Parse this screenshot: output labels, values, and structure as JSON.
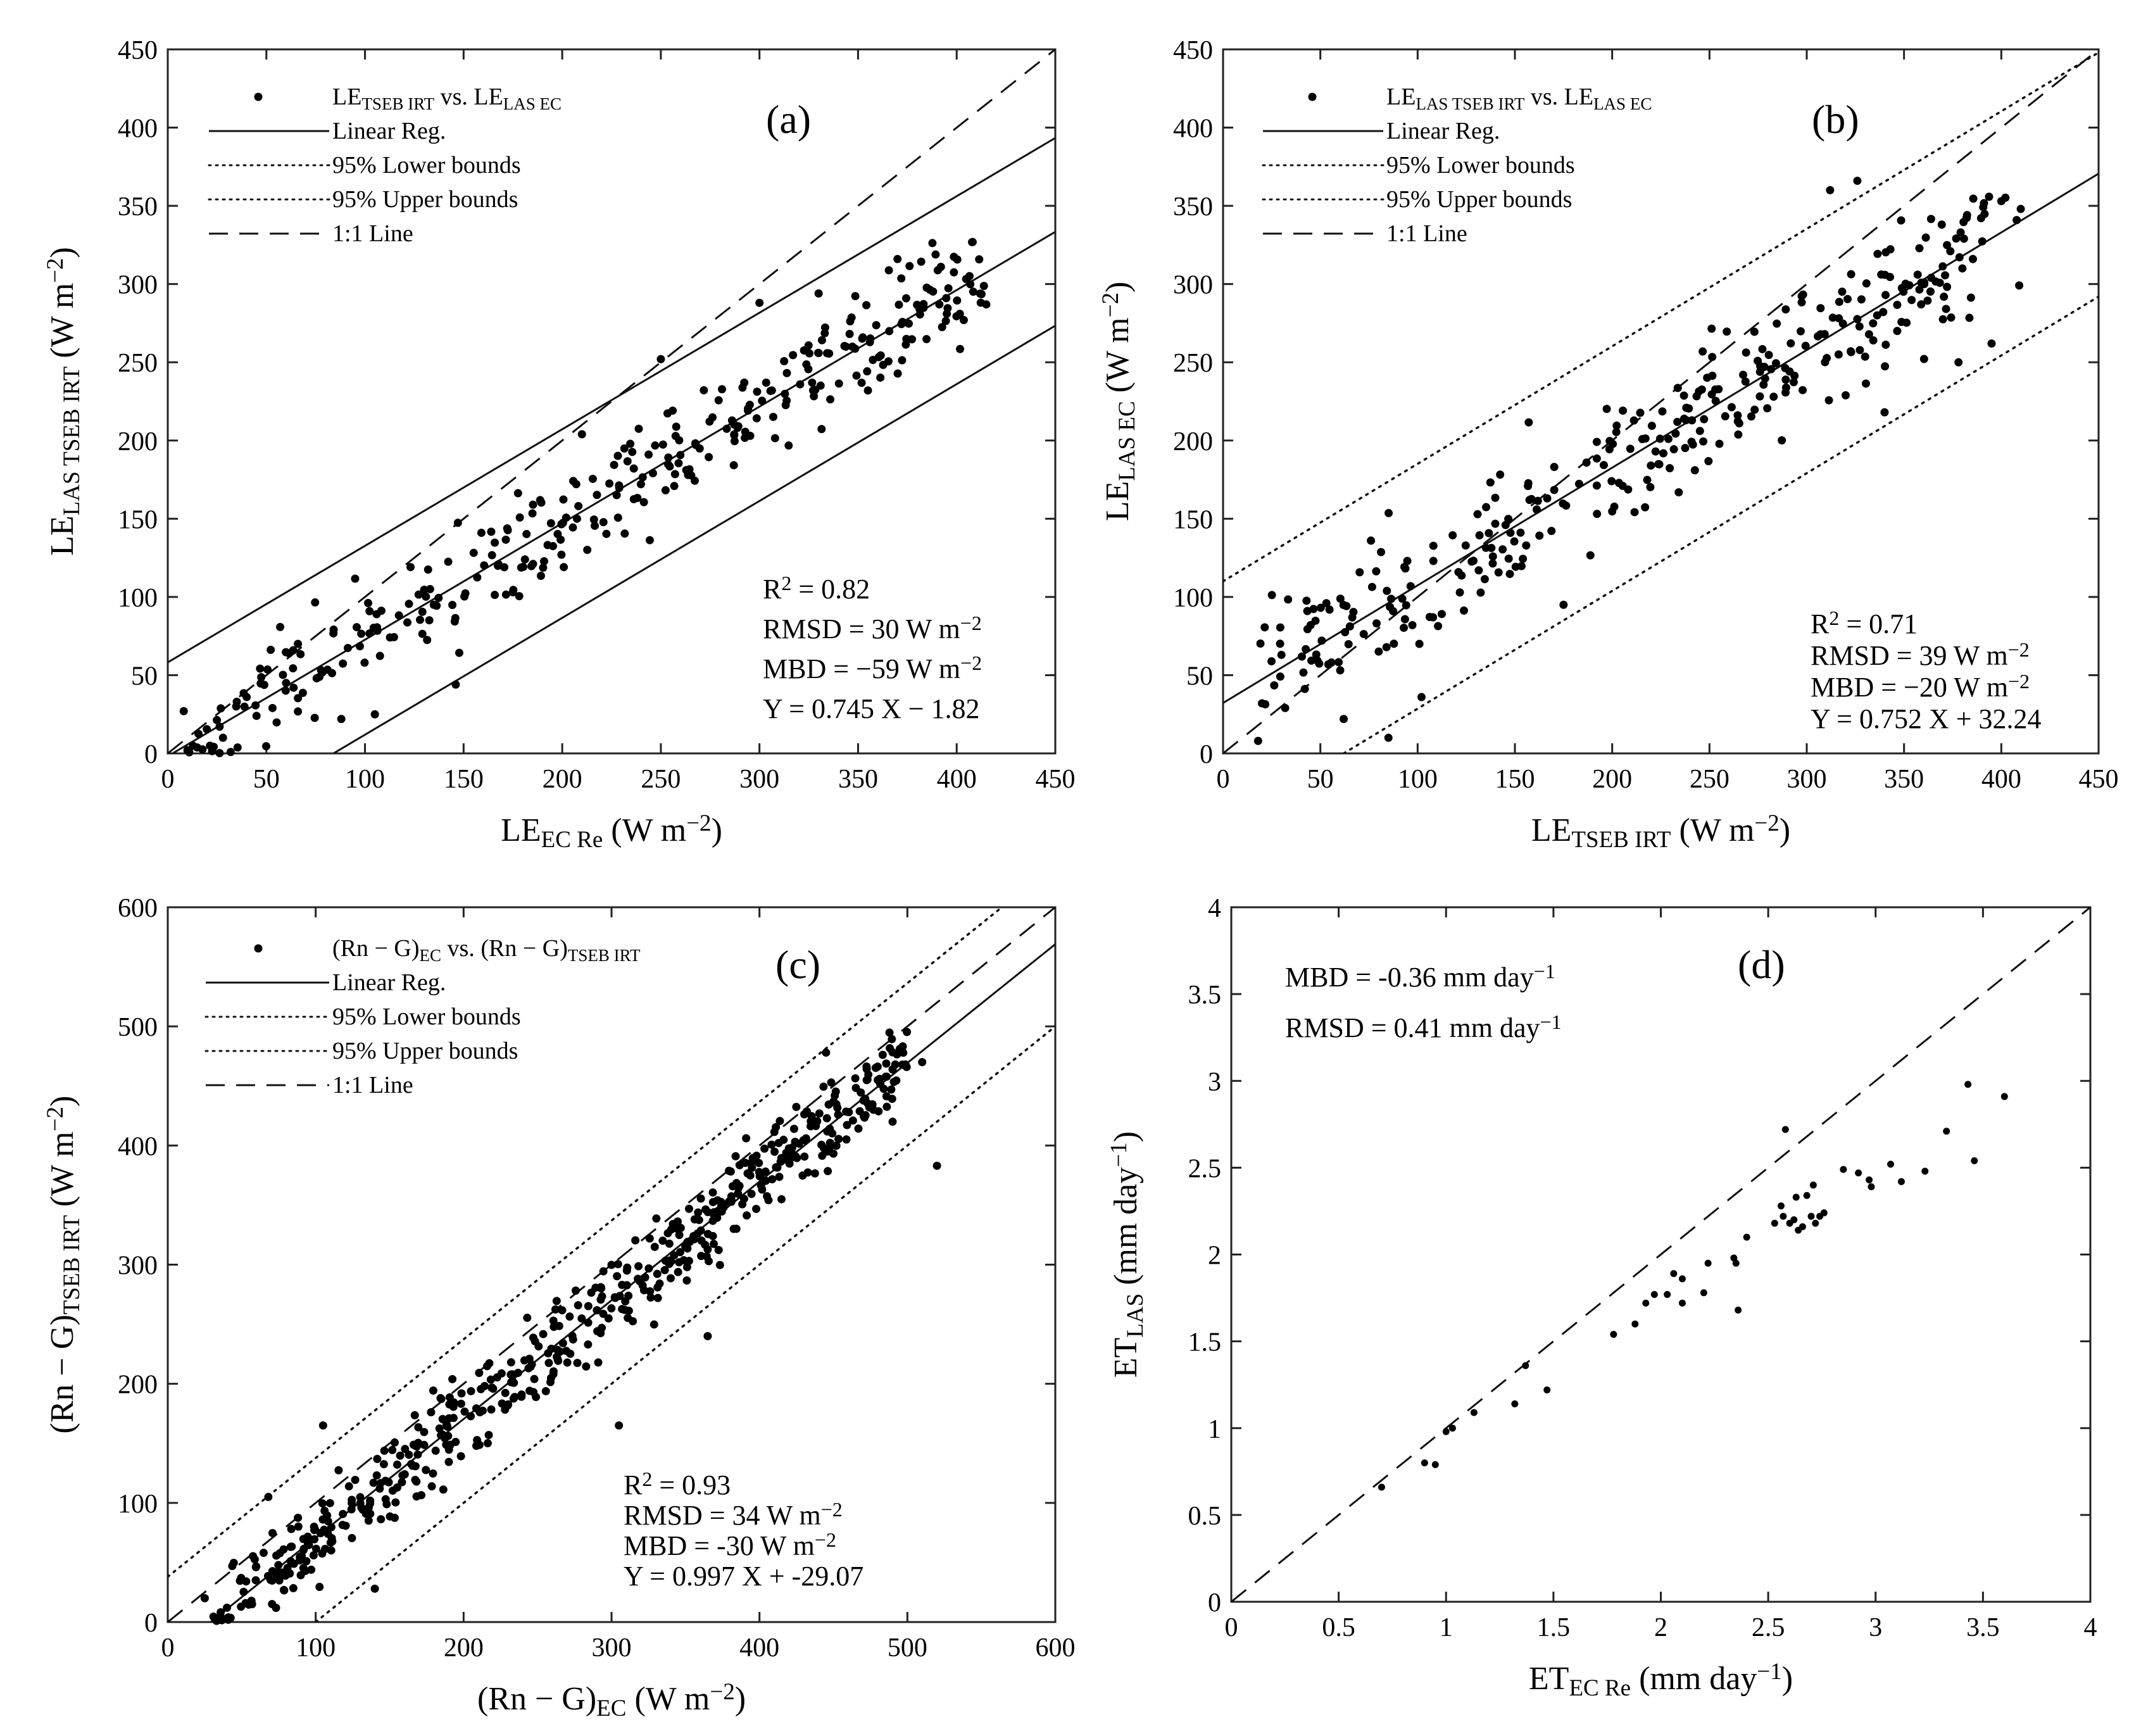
{
  "chart_data": [
    {
      "type": "scatter",
      "panel_label": "(a)",
      "xlabel": {
        "main": "LE",
        "sub": "EC Re",
        "unit": "(W m",
        "sup": "−2",
        "close": ")"
      },
      "ylabel": {
        "main": "LE",
        "sub": "LAS TSEB IRT",
        "unit": "(W m",
        "sup": "−2",
        "close": ")"
      },
      "xlim": [
        0,
        450
      ],
      "ylim": [
        0,
        450
      ],
      "xticks": [
        0,
        50,
        100,
        150,
        200,
        250,
        300,
        350,
        400,
        450
      ],
      "yticks": [
        0,
        50,
        100,
        150,
        200,
        250,
        300,
        350,
        400,
        450
      ],
      "legend": [
        {
          "kind": "dot",
          "parts": [
            [
              "LE",
              ""
            ],
            [
              "TSEB IRT",
              "sub"
            ],
            [
              " vs. LE",
              ""
            ],
            [
              "LAS EC",
              "sub"
            ]
          ]
        },
        {
          "kind": "solid",
          "text": "Linear Reg."
        },
        {
          "kind": "dotted",
          "text": "95% Lower bounds"
        },
        {
          "kind": "dotted",
          "text": "95% Upper bounds"
        },
        {
          "kind": "dashed",
          "text": "1:1 Line"
        }
      ],
      "stats": [
        [
          [
            "R",
            ""
          ],
          [
            "2",
            "sup"
          ],
          [
            " = 0.82",
            ""
          ]
        ],
        [
          [
            "RMSD = 30 W m",
            ""
          ],
          [
            "−2",
            "sup"
          ]
        ],
        [
          [
            "MBD = −59 W m",
            ""
          ],
          [
            "−2",
            "sup"
          ]
        ],
        [
          [
            "Y = 0.745 X − 1.82",
            ""
          ]
        ]
      ],
      "lines": [
        {
          "style": "solid",
          "p1": [
            0,
            -1.82
          ],
          "p2": [
            450,
            333.4
          ]
        },
        {
          "style": "solid",
          "p1": [
            0,
            58.2
          ],
          "p2": [
            450,
            393.4
          ]
        },
        {
          "style": "solid",
          "p1": [
            84,
            0
          ],
          "p2": [
            450,
            273.4
          ]
        },
        {
          "style": "dashed",
          "p1": [
            0,
            0
          ],
          "p2": [
            450,
            450
          ]
        }
      ],
      "gen": {
        "seed": 11,
        "n": 330,
        "xmin": 8,
        "xmax": 415,
        "slope": 0.745,
        "intercept": -1.82,
        "spread": 33
      },
      "points": [
        [
          10,
          2
        ],
        [
          28,
          10
        ],
        [
          35,
          33
        ],
        [
          40,
          36
        ],
        [
          45,
          24
        ],
        [
          60,
          45
        ],
        [
          66,
          70
        ],
        [
          88,
          22
        ],
        [
          105,
          25
        ],
        [
          146,
          44
        ],
        [
          175,
          103
        ],
        [
          210,
          204
        ],
        [
          250,
          252
        ],
        [
          300,
          288
        ],
        [
          330,
          294
        ],
        [
          370,
          316
        ],
        [
          392,
          311
        ],
        [
          415,
          287
        ],
        [
          395,
          281
        ],
        [
          355,
          232
        ]
      ]
    },
    {
      "type": "scatter",
      "panel_label": "(b)",
      "xlabel": {
        "main": "LE",
        "sub": "TSEB IRT",
        "unit": "(W m",
        "sup": "−2",
        "close": ")"
      },
      "ylabel": {
        "main": "LE",
        "sub": "LAS EC",
        "unit": "(W m",
        "sup": "−2",
        "close": ")"
      },
      "xlim": [
        0,
        450
      ],
      "ylim": [
        0,
        450
      ],
      "xticks": [
        0,
        50,
        100,
        150,
        200,
        250,
        300,
        350,
        400,
        450
      ],
      "yticks": [
        0,
        50,
        100,
        150,
        200,
        250,
        300,
        350,
        400,
        450
      ],
      "legend": [
        {
          "kind": "dot",
          "parts": [
            [
              "LE",
              ""
            ],
            [
              "LAS TSEB IRT",
              "sub"
            ],
            [
              " vs. LE",
              ""
            ],
            [
              "LAS EC",
              "sub"
            ]
          ]
        },
        {
          "kind": "solid",
          "text": "Linear Reg."
        },
        {
          "kind": "dotted",
          "text": "95% Lower bounds"
        },
        {
          "kind": "dotted",
          "text": "95% Upper bounds"
        },
        {
          "kind": "dashed",
          "text": "1:1 Line"
        }
      ],
      "stats": [
        [
          [
            "R",
            ""
          ],
          [
            "2",
            "sup"
          ],
          [
            " = 0.71",
            ""
          ]
        ],
        [
          [
            "RMSD = 39 W m",
            ""
          ],
          [
            "−2",
            "sup"
          ]
        ],
        [
          [
            "MBD = −20 W m",
            ""
          ],
          [
            "−2",
            "sup"
          ]
        ],
        [
          [
            "Y = 0.752 X + 32.24",
            ""
          ]
        ]
      ],
      "lines": [
        {
          "style": "solid",
          "p1": [
            0,
            32.24
          ],
          "p2": [
            450,
            370.6
          ]
        },
        {
          "style": "dotted",
          "p1": [
            0,
            110
          ],
          "p2": [
            450,
            448
          ]
        },
        {
          "style": "dotted",
          "p1": [
            62,
            0
          ],
          "p2": [
            450,
            292
          ]
        },
        {
          "style": "dashed",
          "p1": [
            0,
            0
          ],
          "p2": [
            450,
            450
          ]
        }
      ],
      "gen": {
        "seed": 23,
        "n": 330,
        "xmin": 18,
        "xmax": 410,
        "slope": 0.752,
        "intercept": 32.24,
        "spread": 38
      },
      "points": [
        [
          18,
          8
        ],
        [
          20,
          32
        ],
        [
          30,
          63
        ],
        [
          45,
          82
        ],
        [
          62,
          22
        ],
        [
          85,
          10
        ],
        [
          76,
          136
        ],
        [
          102,
          36
        ],
        [
          175,
          95
        ],
        [
          312,
          360
        ],
        [
          326,
          366
        ],
        [
          340,
          218
        ],
        [
          378,
          250
        ],
        [
          395,
          262
        ],
        [
          410,
          348
        ],
        [
          400,
          353
        ],
        [
          380,
          310
        ]
      ]
    },
    {
      "type": "scatter",
      "panel_label": "(c)",
      "xlabel": {
        "main": "(Rn − G)",
        "sub": "EC",
        "unit": "(W m",
        "sup": "−2",
        "close": ")"
      },
      "ylabel": {
        "main": "(Rn − G)",
        "sub": "TSEB IRT",
        "unit": "(W m",
        "sup": "−2",
        "close": ")"
      },
      "xlim": [
        0,
        600
      ],
      "ylim": [
        0,
        600
      ],
      "xticks": [
        0,
        100,
        200,
        300,
        400,
        500,
        600
      ],
      "yticks": [
        0,
        100,
        200,
        300,
        400,
        500,
        600
      ],
      "legend": [
        {
          "kind": "dot",
          "parts": [
            [
              "(Rn − G)",
              ""
            ],
            [
              "EC",
              "sub"
            ],
            [
              " vs. (Rn − G)",
              ""
            ],
            [
              "TSEB IRT",
              "sub"
            ]
          ]
        },
        {
          "kind": "solid",
          "text": "Linear Reg."
        },
        {
          "kind": "dotted",
          "text": "95% Lower bounds"
        },
        {
          "kind": "dotted",
          "text": "95% Upper bounds"
        },
        {
          "kind": "dashed",
          "text": "1:1 Line"
        }
      ],
      "stats": [
        [
          [
            "R",
            ""
          ],
          [
            "2",
            "sup"
          ],
          [
            " = 0.93",
            ""
          ]
        ],
        [
          [
            "RMSD = 34 W m",
            ""
          ],
          [
            "−2",
            "sup"
          ]
        ],
        [
          [
            "MBD = -30 W m",
            ""
          ],
          [
            "−2",
            "sup"
          ]
        ],
        [
          [
            "Y = 0.997 X + -29.07",
            ""
          ]
        ]
      ],
      "lines": [
        {
          "style": "solid",
          "p1": [
            29,
            0
          ],
          "p2": [
            600,
            569
          ]
        },
        {
          "style": "dotted",
          "p1": [
            0,
            38
          ],
          "p2": [
            600,
            636
          ]
        },
        {
          "style": "dotted",
          "p1": [
            100,
            0
          ],
          "p2": [
            600,
            500
          ]
        },
        {
          "style": "dashed",
          "p1": [
            0,
            0
          ],
          "p2": [
            600,
            600
          ]
        }
      ],
      "gen": {
        "seed": 37,
        "n": 560,
        "xmin": 25,
        "xmax": 500,
        "slope": 1.0,
        "intercept": -29,
        "spread": 34
      },
      "points": [
        [
          25,
          20
        ],
        [
          40,
          12
        ],
        [
          68,
          105
        ],
        [
          105,
          165
        ],
        [
          140,
          28
        ],
        [
          305,
          165
        ],
        [
          365,
          240
        ],
        [
          445,
          478
        ],
        [
          510,
          470
        ],
        [
          520,
          383
        ],
        [
          490,
          420
        ],
        [
          480,
          455
        ]
      ]
    },
    {
      "type": "scatter",
      "panel_label": "(d)",
      "xlabel": {
        "main": "ET",
        "sub": "EC Re",
        "unit": "(mm day",
        "sup": "−1",
        "close": ")"
      },
      "ylabel": {
        "main": "ET",
        "sub": "LAS",
        "unit": "(mm day",
        "sup": "−1",
        "close": ")"
      },
      "xlim": [
        0,
        4
      ],
      "ylim": [
        0,
        4
      ],
      "xticks": [
        "0",
        "0.5",
        "1",
        "1.5",
        "2",
        "2.5",
        "3",
        "3.5",
        "4"
      ],
      "yticks": [
        "0",
        "0.5",
        "1",
        "1.5",
        "2",
        "2.5",
        "3",
        "3.5",
        "4"
      ],
      "legend": [],
      "stats": [
        [
          [
            "MBD = -0.36 mm day",
            ""
          ],
          [
            "−1",
            "sup"
          ]
        ],
        [
          [
            "RMSD = 0.41 mm day",
            ""
          ],
          [
            "−1",
            "sup"
          ]
        ]
      ],
      "lines": [
        {
          "style": "dashed",
          "p1": [
            0,
            0
          ],
          "p2": [
            4,
            4
          ]
        }
      ],
      "gen": null,
      "points": [
        [
          0.7,
          0.66
        ],
        [
          0.9,
          0.8
        ],
        [
          0.95,
          0.79
        ],
        [
          1.0,
          0.98
        ],
        [
          1.03,
          1.0
        ],
        [
          1.13,
          1.09
        ],
        [
          1.32,
          1.14
        ],
        [
          1.37,
          1.36
        ],
        [
          1.47,
          1.22
        ],
        [
          1.78,
          1.54
        ],
        [
          1.88,
          1.6
        ],
        [
          1.93,
          1.72
        ],
        [
          1.97,
          1.77
        ],
        [
          2.03,
          1.77
        ],
        [
          2.06,
          1.89
        ],
        [
          2.1,
          1.86
        ],
        [
          2.1,
          1.72
        ],
        [
          2.2,
          1.78
        ],
        [
          2.22,
          1.95
        ],
        [
          2.34,
          1.98
        ],
        [
          2.35,
          1.95
        ],
        [
          2.36,
          1.68
        ],
        [
          2.4,
          2.1
        ],
        [
          2.53,
          2.18
        ],
        [
          2.56,
          2.28
        ],
        [
          2.57,
          2.22
        ],
        [
          2.58,
          2.72
        ],
        [
          2.6,
          2.18
        ],
        [
          2.62,
          2.2
        ],
        [
          2.63,
          2.33
        ],
        [
          2.64,
          2.14
        ],
        [
          2.66,
          2.16
        ],
        [
          2.68,
          2.34
        ],
        [
          2.7,
          2.22
        ],
        [
          2.71,
          2.4
        ],
        [
          2.72,
          2.18
        ],
        [
          2.74,
          2.22
        ],
        [
          2.76,
          2.24
        ],
        [
          2.85,
          2.49
        ],
        [
          2.92,
          2.47
        ],
        [
          2.97,
          2.43
        ],
        [
          2.98,
          2.39
        ],
        [
          3.07,
          2.52
        ],
        [
          3.12,
          2.42
        ],
        [
          3.23,
          2.48
        ],
        [
          3.33,
          2.71
        ],
        [
          3.43,
          2.98
        ],
        [
          3.46,
          2.54
        ],
        [
          3.6,
          2.91
        ]
      ]
    }
  ]
}
